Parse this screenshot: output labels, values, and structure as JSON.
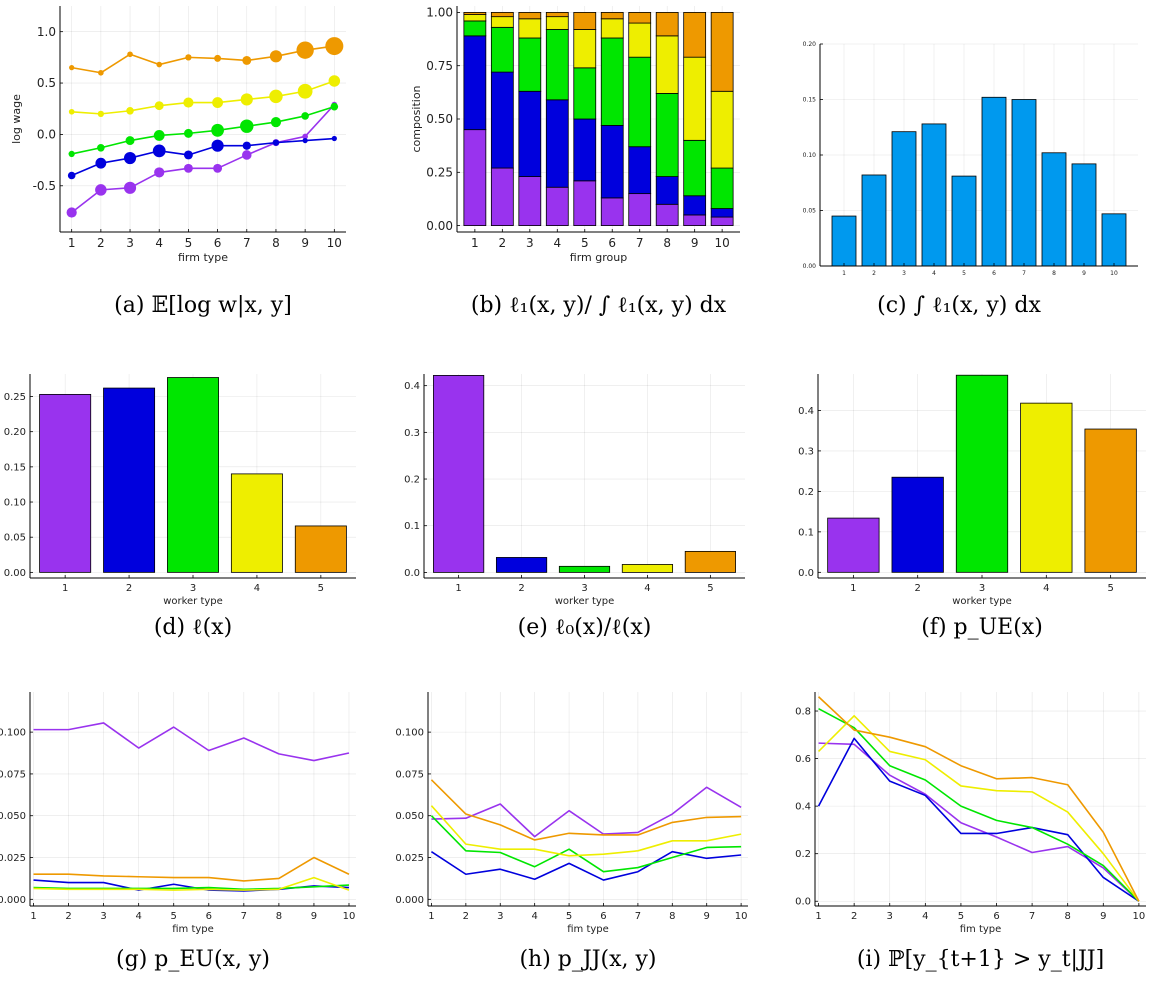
{
  "colors": {
    "wt1": "#9933EE",
    "wt2": "#0000DD",
    "wt3": "#00E600",
    "wt4": "#EEEE00",
    "wt5": "#EE9900",
    "blue_bar": "#0099EE"
  },
  "chart_data": [
    {
      "id": "a",
      "type": "line",
      "caption": "(a) 𝔼[log w|x, y]",
      "xlabel": "firm type",
      "ylabel": "log wage",
      "xlim": [
        0.6,
        10.4
      ],
      "ylim": [
        -0.95,
        1.25
      ],
      "xticks": [
        1,
        2,
        3,
        4,
        5,
        6,
        7,
        8,
        9,
        10
      ],
      "xtick_labels": [
        "1",
        "2",
        "3",
        "4",
        "5",
        "6",
        "7",
        "8",
        "9",
        "10"
      ],
      "yticks": [
        -0.5,
        0.0,
        0.5,
        1.0
      ],
      "ytick_labels": [
        "-0.5",
        "0.0",
        "0.5",
        "1.0"
      ],
      "x": [
        1,
        2,
        3,
        4,
        5,
        6,
        7,
        8,
        9,
        10
      ],
      "series": [
        {
          "color_key": "wt1",
          "values": [
            -0.76,
            -0.54,
            -0.52,
            -0.37,
            -0.33,
            -0.33,
            -0.2,
            -0.08,
            -0.02,
            0.29
          ],
          "sizes": [
            0.4,
            0.5,
            0.55,
            0.4,
            0.3,
            0.3,
            0.35,
            0.15,
            0.05,
            0.05
          ]
        },
        {
          "color_key": "wt2",
          "values": [
            -0.4,
            -0.28,
            -0.23,
            -0.16,
            -0.2,
            -0.11,
            -0.11,
            -0.08,
            -0.06,
            -0.04
          ],
          "sizes": [
            0.2,
            0.45,
            0.55,
            0.6,
            0.3,
            0.55,
            0.25,
            0.1,
            0.02,
            0.02
          ]
        },
        {
          "color_key": "wt3",
          "values": [
            -0.19,
            -0.13,
            -0.06,
            -0.01,
            0.01,
            0.04,
            0.08,
            0.12,
            0.18,
            0.27
          ],
          "sizes": [
            0.1,
            0.2,
            0.3,
            0.45,
            0.3,
            0.6,
            0.65,
            0.4,
            0.2,
            0.2
          ]
        },
        {
          "color_key": "wt4",
          "values": [
            0.22,
            0.2,
            0.23,
            0.28,
            0.31,
            0.31,
            0.34,
            0.37,
            0.42,
            0.52
          ],
          "sizes": [
            0.05,
            0.1,
            0.2,
            0.3,
            0.4,
            0.45,
            0.55,
            0.65,
            0.75,
            0.5
          ]
        },
        {
          "color_key": "wt5",
          "values": [
            0.65,
            0.6,
            0.78,
            0.68,
            0.75,
            0.74,
            0.72,
            0.76,
            0.82,
            0.86
          ],
          "sizes": [
            0.02,
            0.05,
            0.05,
            0.05,
            0.1,
            0.15,
            0.3,
            0.55,
            0.95,
            1.0
          ]
        }
      ]
    },
    {
      "id": "b",
      "type": "bar",
      "stacked": true,
      "caption": "(b) ℓ₁(x, y)/ ∫ ℓ₁(x, y) dx",
      "xlabel": "firm group",
      "ylabel": "composition",
      "xlim": [
        0.35,
        10.65
      ],
      "ylim": [
        -0.03,
        1.03
      ],
      "xticks": [
        1,
        2,
        3,
        4,
        5,
        6,
        7,
        8,
        9,
        10
      ],
      "xtick_labels": [
        "1",
        "2",
        "3",
        "4",
        "5",
        "6",
        "7",
        "8",
        "9",
        "10"
      ],
      "yticks": [
        0.0,
        0.25,
        0.5,
        0.75,
        1.0
      ],
      "ytick_labels": [
        "0.00",
        "0.25",
        "0.50",
        "0.75",
        "1.00"
      ],
      "categories": [
        "1",
        "2",
        "3",
        "4",
        "5",
        "6",
        "7",
        "8",
        "9",
        "10"
      ],
      "series": [
        {
          "color_key": "wt1",
          "values": [
            0.45,
            0.27,
            0.23,
            0.18,
            0.21,
            0.13,
            0.15,
            0.1,
            0.05,
            0.04
          ]
        },
        {
          "color_key": "wt2",
          "values": [
            0.44,
            0.45,
            0.4,
            0.41,
            0.29,
            0.34,
            0.22,
            0.13,
            0.09,
            0.04
          ]
        },
        {
          "color_key": "wt3",
          "values": [
            0.07,
            0.21,
            0.25,
            0.33,
            0.24,
            0.41,
            0.42,
            0.39,
            0.26,
            0.19
          ]
        },
        {
          "color_key": "wt4",
          "values": [
            0.03,
            0.05,
            0.09,
            0.06,
            0.18,
            0.09,
            0.16,
            0.27,
            0.39,
            0.36
          ]
        },
        {
          "color_key": "wt5",
          "values": [
            0.01,
            0.02,
            0.03,
            0.02,
            0.08,
            0.03,
            0.05,
            0.11,
            0.21,
            0.37
          ]
        }
      ]
    },
    {
      "id": "c",
      "type": "bar",
      "caption": "(c) ∫ ℓ₁(x, y) dx",
      "xlabel": "",
      "ylabel": "",
      "xlim": [
        0.2,
        10.8
      ],
      "ylim": [
        0.0,
        0.2
      ],
      "xticks": [
        1,
        2,
        3,
        4,
        5,
        6,
        7,
        8,
        9,
        10
      ],
      "xtick_labels": [
        "1",
        "2",
        "3",
        "4",
        "5",
        "6",
        "7",
        "8",
        "9",
        "10"
      ],
      "yticks": [
        0.0,
        0.05,
        0.1,
        0.15,
        0.2
      ],
      "ytick_labels": [
        "0.00",
        "0.05",
        "0.10",
        "0.15",
        "0.20"
      ],
      "categories": [
        "1",
        "2",
        "3",
        "4",
        "5",
        "6",
        "7",
        "8",
        "9",
        "10"
      ],
      "color_key": "blue_bar",
      "values": [
        0.045,
        0.082,
        0.121,
        0.128,
        0.081,
        0.152,
        0.15,
        0.102,
        0.092,
        0.047
      ]
    },
    {
      "id": "d",
      "type": "bar",
      "caption": "(d) ℓ(x)",
      "xlabel": "worker type",
      "ylabel": "",
      "xlim": [
        0.45,
        5.55
      ],
      "ylim": [
        -0.008,
        0.282
      ],
      "xticks": [
        1,
        2,
        3,
        4,
        5
      ],
      "xtick_labels": [
        "1",
        "2",
        "3",
        "4",
        "5"
      ],
      "yticks": [
        0.0,
        0.05,
        0.1,
        0.15,
        0.2,
        0.25
      ],
      "ytick_labels": [
        "0.00",
        "0.05",
        "0.10",
        "0.15",
        "0.20",
        "0.25"
      ],
      "categories": [
        "1",
        "2",
        "3",
        "4",
        "5"
      ],
      "bar_color_keys": [
        "wt1",
        "wt2",
        "wt3",
        "wt4",
        "wt5"
      ],
      "values": [
        0.253,
        0.262,
        0.277,
        0.14,
        0.066
      ]
    },
    {
      "id": "e",
      "type": "bar",
      "caption": "(e) ℓ₀(x)/ℓ(x)",
      "xlabel": "worker type",
      "ylabel": "",
      "xlim": [
        0.45,
        5.55
      ],
      "ylim": [
        -0.012,
        0.425
      ],
      "xticks": [
        1,
        2,
        3,
        4,
        5
      ],
      "xtick_labels": [
        "1",
        "2",
        "3",
        "4",
        "5"
      ],
      "yticks": [
        0.0,
        0.1,
        0.2,
        0.3,
        0.4
      ],
      "ytick_labels": [
        "0.0",
        "0.1",
        "0.2",
        "0.3",
        "0.4"
      ],
      "categories": [
        "1",
        "2",
        "3",
        "4",
        "5"
      ],
      "bar_color_keys": [
        "wt1",
        "wt2",
        "wt3",
        "wt4",
        "wt5"
      ],
      "values": [
        0.422,
        0.032,
        0.013,
        0.017,
        0.045
      ]
    },
    {
      "id": "f",
      "type": "bar",
      "caption": "(f) p_UE(x)",
      "xlabel": "worker type",
      "ylabel": "",
      "xlim": [
        0.45,
        5.55
      ],
      "ylim": [
        -0.014,
        0.49
      ],
      "xticks": [
        1,
        2,
        3,
        4,
        5
      ],
      "xtick_labels": [
        "1",
        "2",
        "3",
        "4",
        "5"
      ],
      "yticks": [
        0.0,
        0.1,
        0.2,
        0.3,
        0.4
      ],
      "ytick_labels": [
        "0.0",
        "0.1",
        "0.2",
        "0.3",
        "0.4"
      ],
      "categories": [
        "1",
        "2",
        "3",
        "4",
        "5"
      ],
      "bar_color_keys": [
        "wt1",
        "wt2",
        "wt3",
        "wt4",
        "wt5"
      ],
      "values": [
        0.134,
        0.235,
        0.487,
        0.418,
        0.354
      ]
    },
    {
      "id": "g",
      "type": "line",
      "caption": "(g) p_EU(x, y)",
      "xlabel": "fim type",
      "ylabel": "",
      "xlim": [
        0.9,
        10.2
      ],
      "ylim": [
        -0.004,
        0.124
      ],
      "xticks": [
        1,
        2,
        3,
        4,
        5,
        6,
        7,
        8,
        9,
        10
      ],
      "xtick_labels": [
        "1",
        "2",
        "3",
        "4",
        "5",
        "6",
        "7",
        "8",
        "9",
        "10"
      ],
      "yticks": [
        0.0,
        0.025,
        0.05,
        0.075,
        0.1
      ],
      "ytick_labels": [
        "0.000",
        "0.025",
        "0.050",
        "0.075",
        "0.100"
      ],
      "x": [
        1,
        2,
        3,
        4,
        5,
        6,
        7,
        8,
        9,
        10
      ],
      "series": [
        {
          "color_key": "wt1",
          "values": [
            0.1015,
            0.1015,
            0.1055,
            0.0905,
            0.103,
            0.089,
            0.0965,
            0.087,
            0.083,
            0.0875
          ]
        },
        {
          "color_key": "wt2",
          "values": [
            0.0115,
            0.01,
            0.01,
            0.0055,
            0.009,
            0.0055,
            0.005,
            0.006,
            0.008,
            0.007
          ]
        },
        {
          "color_key": "wt3",
          "values": [
            0.007,
            0.0065,
            0.0065,
            0.0065,
            0.0065,
            0.007,
            0.006,
            0.0065,
            0.0075,
            0.0085
          ]
        },
        {
          "color_key": "wt4",
          "values": [
            0.0065,
            0.006,
            0.006,
            0.006,
            0.0055,
            0.006,
            0.0055,
            0.006,
            0.013,
            0.0055
          ]
        },
        {
          "color_key": "wt5",
          "values": [
            0.015,
            0.015,
            0.014,
            0.0135,
            0.013,
            0.013,
            0.011,
            0.0125,
            0.025,
            0.015
          ]
        }
      ]
    },
    {
      "id": "h",
      "type": "line",
      "caption": "(h) p_JJ(x, y)",
      "xlabel": "fim type",
      "ylabel": "",
      "xlim": [
        0.9,
        10.2
      ],
      "ylim": [
        -0.004,
        0.124
      ],
      "xticks": [
        1,
        2,
        3,
        4,
        5,
        6,
        7,
        8,
        9,
        10
      ],
      "xtick_labels": [
        "1",
        "2",
        "3",
        "4",
        "5",
        "6",
        "7",
        "8",
        "9",
        "10"
      ],
      "yticks": [
        0.0,
        0.025,
        0.05,
        0.075,
        0.1
      ],
      "ytick_labels": [
        "0.000",
        "0.025",
        "0.050",
        "0.075",
        "0.100"
      ],
      "x": [
        1,
        2,
        3,
        4,
        5,
        6,
        7,
        8,
        9,
        10
      ],
      "series": [
        {
          "color_key": "wt1",
          "values": [
            0.048,
            0.0485,
            0.057,
            0.0375,
            0.053,
            0.039,
            0.04,
            0.051,
            0.067,
            0.055
          ]
        },
        {
          "color_key": "wt2",
          "values": [
            0.0285,
            0.015,
            0.018,
            0.012,
            0.0215,
            0.0115,
            0.0165,
            0.0285,
            0.0245,
            0.0265
          ]
        },
        {
          "color_key": "wt3",
          "values": [
            0.05,
            0.029,
            0.028,
            0.0195,
            0.03,
            0.0165,
            0.019,
            0.025,
            0.031,
            0.0315
          ]
        },
        {
          "color_key": "wt4",
          "values": [
            0.056,
            0.033,
            0.03,
            0.03,
            0.026,
            0.027,
            0.029,
            0.035,
            0.035,
            0.039
          ]
        },
        {
          "color_key": "wt5",
          "values": [
            0.0715,
            0.051,
            0.0445,
            0.0355,
            0.0395,
            0.0385,
            0.0385,
            0.046,
            0.049,
            0.0495
          ]
        }
      ]
    },
    {
      "id": "i",
      "type": "line",
      "caption": "(i) ℙ[y_{t+1} > y_t|JJ]",
      "xlabel": "fim type",
      "ylabel": "",
      "xlim": [
        0.9,
        10.2
      ],
      "ylim": [
        -0.02,
        0.88
      ],
      "xticks": [
        1,
        2,
        3,
        4,
        5,
        6,
        7,
        8,
        9,
        10
      ],
      "xtick_labels": [
        "1",
        "2",
        "3",
        "4",
        "5",
        "6",
        "7",
        "8",
        "9",
        "10"
      ],
      "yticks": [
        0.0,
        0.2,
        0.4,
        0.6,
        0.8
      ],
      "ytick_labels": [
        "0.0",
        "0.2",
        "0.4",
        "0.6",
        "0.8"
      ],
      "x": [
        1,
        2,
        3,
        4,
        5,
        6,
        7,
        8,
        9,
        10
      ],
      "series": [
        {
          "color_key": "wt1",
          "values": [
            0.665,
            0.66,
            0.53,
            0.45,
            0.33,
            0.27,
            0.205,
            0.23,
            0.14,
            0.0
          ]
        },
        {
          "color_key": "wt2",
          "values": [
            0.4,
            0.685,
            0.505,
            0.445,
            0.285,
            0.285,
            0.31,
            0.28,
            0.1,
            0.0
          ]
        },
        {
          "color_key": "wt3",
          "values": [
            0.81,
            0.73,
            0.57,
            0.51,
            0.4,
            0.34,
            0.31,
            0.24,
            0.15,
            0.0
          ]
        },
        {
          "color_key": "wt4",
          "values": [
            0.63,
            0.78,
            0.63,
            0.595,
            0.485,
            0.465,
            0.46,
            0.375,
            0.2,
            0.0
          ]
        },
        {
          "color_key": "wt5",
          "values": [
            0.86,
            0.72,
            0.69,
            0.65,
            0.57,
            0.515,
            0.52,
            0.49,
            0.29,
            0.0
          ]
        }
      ]
    }
  ]
}
